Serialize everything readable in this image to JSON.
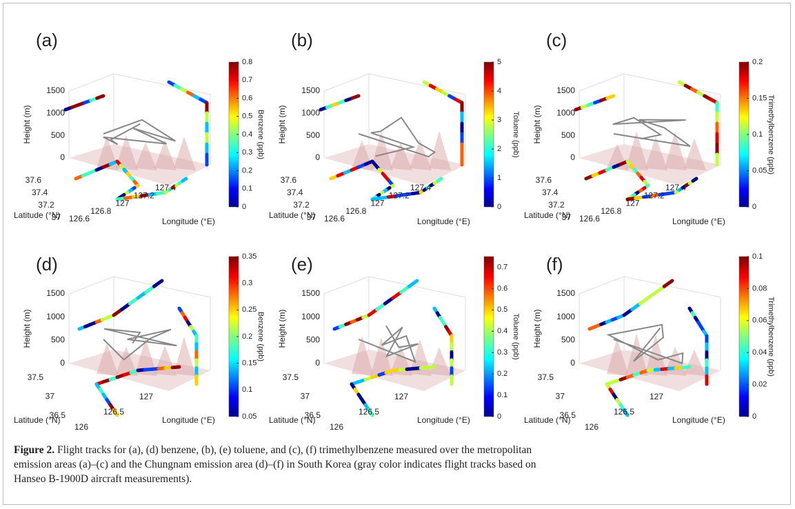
{
  "figure": {
    "panels": [
      {
        "label": "(a)",
        "colorbar": {
          "title": "Benzene (ppb)",
          "ticks": [
            0,
            0.1,
            0.2,
            0.3,
            0.4,
            0.5,
            0.6,
            0.7,
            0.8
          ],
          "lim": [
            0,
            0.8
          ]
        },
        "height": {
          "title": "Height (m)",
          "ticks": [
            0,
            500,
            1000,
            1500
          ]
        },
        "latitude": {
          "title": "Latitude (°N)",
          "ticks": [
            37,
            37.2,
            37.4,
            37.6
          ]
        },
        "longitude": {
          "title": "Longitude (°E)",
          "ticks": [
            126.6,
            126.8,
            127,
            127.2,
            127.4
          ]
        }
      },
      {
        "label": "(b)",
        "colorbar": {
          "title": "Toluene (ppb)",
          "ticks": [
            0,
            1,
            2,
            3,
            4,
            5
          ],
          "lim": [
            0,
            5
          ]
        },
        "height": {
          "title": "Height (m)",
          "ticks": [
            0,
            500,
            1000,
            1500
          ]
        },
        "latitude": {
          "title": "Latitude (°N)",
          "ticks": [
            37,
            37.2,
            37.4,
            37.6
          ]
        },
        "longitude": {
          "title": "Longitude (°E)",
          "ticks": [
            126.6,
            126.8,
            127,
            127.2,
            127.4
          ]
        }
      },
      {
        "label": "(c)",
        "colorbar": {
          "title": "Trimethylbenzene (ppb)",
          "ticks": [
            0,
            0.05,
            0.1,
            0.15,
            0.2
          ],
          "lim": [
            0,
            0.2
          ]
        },
        "height": {
          "title": "Height (m)",
          "ticks": [
            0,
            500,
            1000,
            1500
          ]
        },
        "latitude": {
          "title": "Latitude (°N)",
          "ticks": [
            37,
            37.2,
            37.4,
            37.6
          ]
        },
        "longitude": {
          "title": "Longitude (°E)",
          "ticks": [
            126.6,
            126.8,
            127,
            127.2,
            127.4
          ]
        }
      },
      {
        "label": "(d)",
        "colorbar": {
          "title": "Benzene (ppb)",
          "ticks": [
            0.05,
            0.1,
            0.15,
            0.2,
            0.25,
            0.3,
            0.35
          ],
          "lim": [
            0.05,
            0.35
          ]
        },
        "height": {
          "title": "Height (m)",
          "ticks": [
            0,
            500,
            1000,
            1500
          ]
        },
        "latitude": {
          "title": "Latitude (°N)",
          "ticks": [
            36.5,
            37,
            37.5
          ]
        },
        "longitude": {
          "title": "Longitude (°E)",
          "ticks": [
            126,
            126.5,
            127
          ]
        }
      },
      {
        "label": "(e)",
        "colorbar": {
          "title": "Toluene (ppb)",
          "ticks": [
            0,
            0.1,
            0.2,
            0.3,
            0.4,
            0.5,
            0.6,
            0.7
          ],
          "lim": [
            0,
            0.75
          ]
        },
        "height": {
          "title": "Height (m)",
          "ticks": [
            0,
            500,
            1000,
            1500
          ]
        },
        "latitude": {
          "title": "Latitude (°N)",
          "ticks": [
            36.5,
            37,
            37.5
          ]
        },
        "longitude": {
          "title": "Longitude (°E)",
          "ticks": [
            126,
            126.5,
            127
          ]
        }
      },
      {
        "label": "(f)",
        "colorbar": {
          "title": "Trimethylbenzene (ppb)",
          "ticks": [
            0,
            0.02,
            0.04,
            0.06,
            0.08,
            0.1
          ],
          "lim": [
            0,
            0.1
          ]
        },
        "height": {
          "title": "Height (m)",
          "ticks": [
            0,
            500,
            1000,
            1500
          ]
        },
        "latitude": {
          "title": "Latitude (°N)",
          "ticks": [
            36.5,
            37,
            37.5
          ]
        },
        "longitude": {
          "title": "Longitude (°E)",
          "ticks": [
            126,
            126.5,
            127
          ]
        }
      }
    ],
    "caption": {
      "label": "Figure 2.",
      "lines": [
        " Flight tracks for (a), (d) benzene, (b), (e) toluene, and (c), (f) trimethylbenzene measured over the metropolitan",
        "emission areas (a)–(c) and the Chungnam emission area (d)–(f) in South Korea (gray color indicates flight tracks based on",
        "Hanseo B-1900D aircraft measurements)."
      ]
    }
  }
}
